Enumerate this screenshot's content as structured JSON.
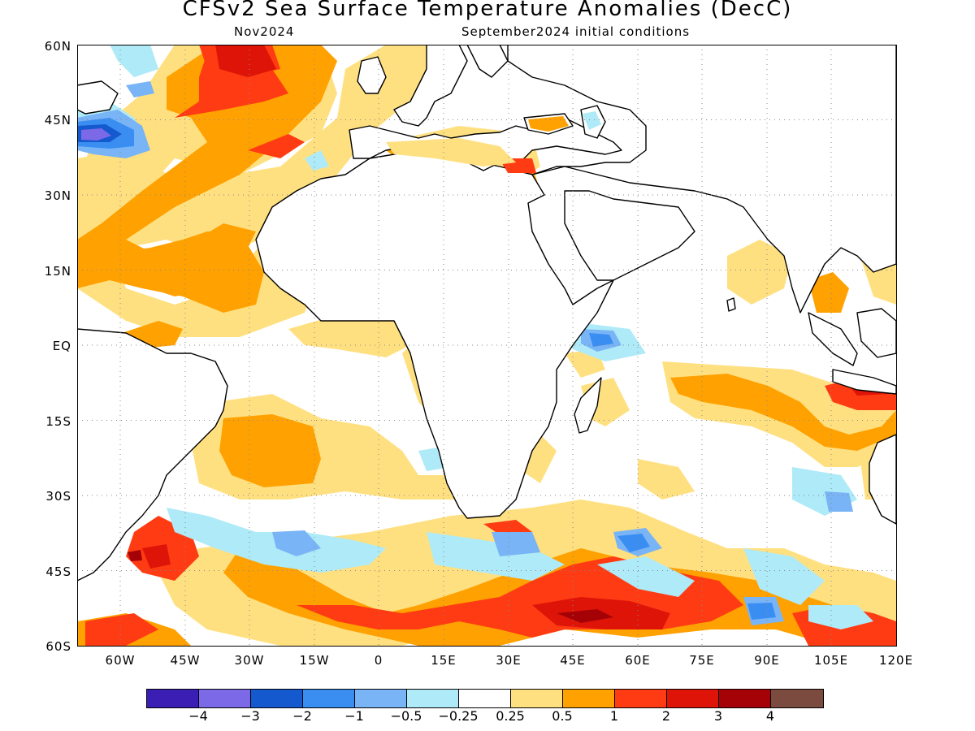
{
  "header": {
    "title": "CFSv2 Sea Surface Temperature Anomalies (DecC)",
    "valid_label": "Nov2024",
    "init_label": "September2024 initial conditions"
  },
  "axes": {
    "lat_labels": [
      "60N",
      "45N",
      "30N",
      "15N",
      "EQ",
      "15S",
      "30S",
      "45S",
      "60S"
    ],
    "lon_labels": [
      "60W",
      "45W",
      "30W",
      "15W",
      "0",
      "15E",
      "30E",
      "45E",
      "60E",
      "75E",
      "90E",
      "105E",
      "120E"
    ],
    "lon_range": [
      -70,
      120
    ],
    "lat_range": [
      -60,
      60
    ],
    "grid": "dotted, every 15 degrees"
  },
  "colorbar": {
    "colors": [
      "#3b1fb4",
      "#7c69e8",
      "#1559cf",
      "#3a8ef2",
      "#78b4f6",
      "#aeeaf7",
      "#ffffff",
      "#ffe081",
      "#ffa100",
      "#ff3b13",
      "#df1409",
      "#a40206",
      "#7a4b3e"
    ],
    "tick_labels": [
      "-4",
      "-3",
      "-2",
      "-1",
      "-0.5",
      "-0.25",
      "0.25",
      "0.5",
      "1",
      "2",
      "3",
      "4"
    ]
  }
}
